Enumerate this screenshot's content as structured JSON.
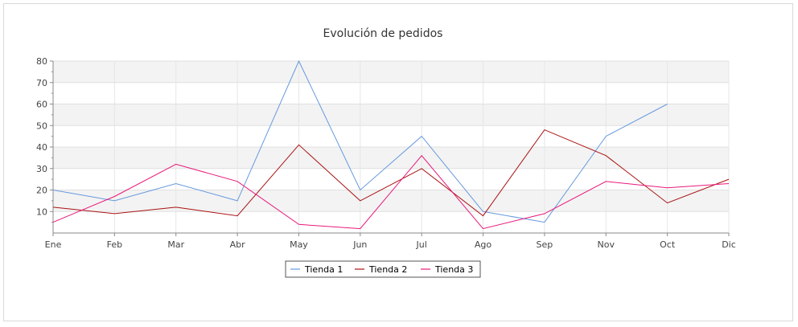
{
  "chart_data": {
    "type": "line",
    "title": "Evolución de pedidos",
    "categories": [
      "Ene",
      "Feb",
      "Mar",
      "Abr",
      "May",
      "Jun",
      "Jul",
      "Ago",
      "Sep",
      "Nov",
      "Oct",
      "Dic"
    ],
    "yticks": [
      10,
      20,
      30,
      40,
      50,
      60,
      70,
      80
    ],
    "ylim": [
      0,
      80
    ],
    "grid": true,
    "legend_position": "bottom",
    "series": [
      {
        "name": "Tienda 1",
        "color": "#6699dd",
        "values": [
          20,
          15,
          23,
          15,
          80,
          20,
          45,
          10,
          5,
          45,
          60,
          null
        ]
      },
      {
        "name": "Tienda 2",
        "color": "#aa1111",
        "values": [
          12,
          9,
          12,
          8,
          41,
          15,
          30,
          8,
          48,
          36,
          14,
          25
        ]
      },
      {
        "name": "Tienda 3",
        "color": "#e8197a",
        "values": [
          5,
          17,
          32,
          24,
          4,
          2,
          36,
          2,
          9,
          24,
          21,
          23
        ]
      }
    ]
  }
}
